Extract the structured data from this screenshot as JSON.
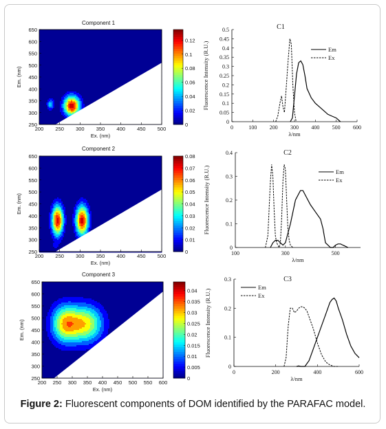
{
  "caption": {
    "label": "Figure 2:",
    "text": " Fluorescent components of DOM identified by the PARAFAC model."
  },
  "chart_data": [
    {
      "type": "heatmap",
      "title": "Component 1",
      "xlabel": "Ex. (nm)",
      "ylabel": "Em. (nm)",
      "xlim": [
        200,
        500
      ],
      "ylim": [
        250,
        650
      ],
      "xticks": [
        "200",
        "250",
        "300",
        "350",
        "400",
        "450",
        "500"
      ],
      "yticks": [
        "250",
        "300",
        "350",
        "400",
        "450",
        "500",
        "550",
        "600",
        "650"
      ],
      "colorbar_ticks": [
        "0",
        "0.02",
        "0.04",
        "0.06",
        "0.08",
        "0.1",
        "0.12"
      ],
      "colorbar_max": 0.135,
      "peaks": [
        {
          "ex": 228,
          "em": 335,
          "value": 0.05,
          "sx": 6,
          "sy": 16
        },
        {
          "ex": 280,
          "em": 328,
          "value": 0.13,
          "sx": 14,
          "sy": 30
        }
      ]
    },
    {
      "type": "line",
      "title": "C1",
      "xlabel": "λ/nm",
      "ylabel": "Fluorescence Intensity (R.U.)",
      "xlim": [
        0,
        600
      ],
      "ylim": [
        0,
        0.5
      ],
      "xticks": [
        "0",
        "100",
        "200",
        "300",
        "400",
        "500",
        "600"
      ],
      "yticks": [
        "0",
        "0.05",
        "0.1",
        "0.15",
        "0.2",
        "0.25",
        "0.3",
        "0.35",
        "0.4",
        "0.45",
        "0.5"
      ],
      "legend": [
        "Em",
        "Ex"
      ],
      "series": [
        {
          "name": "Em",
          "style": "solid",
          "x": [
            280,
            290,
            300,
            310,
            320,
            330,
            340,
            350,
            360,
            380,
            400,
            420,
            440,
            460,
            480,
            500,
            520
          ],
          "y": [
            0,
            0.02,
            0.14,
            0.26,
            0.32,
            0.33,
            0.31,
            0.25,
            0.18,
            0.13,
            0.1,
            0.08,
            0.06,
            0.04,
            0.03,
            0.02,
            0.0
          ]
        },
        {
          "name": "Ex",
          "style": "dashed",
          "x": [
            210,
            220,
            230,
            238,
            245,
            252,
            260,
            270,
            278,
            285,
            292,
            300,
            308
          ],
          "y": [
            0,
            0.03,
            0.1,
            0.14,
            0.08,
            0.05,
            0.18,
            0.34,
            0.45,
            0.42,
            0.2,
            0.05,
            0
          ]
        }
      ]
    },
    {
      "type": "heatmap",
      "title": "Component 2",
      "xlabel": "Ex. (nm)",
      "ylabel": "Em. (nm)",
      "xlim": [
        200,
        500
      ],
      "ylim": [
        250,
        650
      ],
      "xticks": [
        "200",
        "250",
        "300",
        "350",
        "400",
        "450",
        "500"
      ],
      "yticks": [
        "250",
        "300",
        "350",
        "400",
        "450",
        "500",
        "550",
        "600",
        "650"
      ],
      "colorbar_ticks": [
        "0",
        "0.01",
        "0.02",
        "0.03",
        "0.04",
        "0.05",
        "0.06",
        "0.07",
        "0.08"
      ],
      "colorbar_max": 0.08,
      "peaks": [
        {
          "ex": 245,
          "em": 380,
          "value": 0.075,
          "sx": 10,
          "sy": 45
        },
        {
          "ex": 305,
          "em": 380,
          "value": 0.075,
          "sx": 11,
          "sy": 45
        },
        {
          "ex": 240,
          "em": 275,
          "value": 0.012,
          "sx": 5,
          "sy": 8
        }
      ]
    },
    {
      "type": "line",
      "title": "C2",
      "xlabel": "λ/nm",
      "ylabel": "Fluorescence Intensity (R.U.)",
      "xlim": [
        100,
        600
      ],
      "ylim": [
        0,
        0.4
      ],
      "xticks": [
        "100",
        "300",
        "500"
      ],
      "yticks": [
        "0",
        "0.1",
        "0.2",
        "0.3",
        "0.4"
      ],
      "legend": [
        "Em",
        "Ex"
      ],
      "series": [
        {
          "name": "Em",
          "style": "solid",
          "x": [
            240,
            250,
            260,
            270,
            280,
            290,
            300,
            320,
            340,
            360,
            370,
            380,
            400,
            420,
            440,
            450,
            460,
            470,
            480,
            490,
            500,
            510,
            520,
            530,
            540,
            550
          ],
          "y": [
            0,
            0.02,
            0.03,
            0.03,
            0.02,
            0.01,
            0.02,
            0.1,
            0.2,
            0.24,
            0.24,
            0.22,
            0.18,
            0.15,
            0.12,
            0.08,
            0.02,
            0.01,
            0.0,
            0.0,
            0.01,
            0.015,
            0.015,
            0.01,
            0.005,
            0
          ]
        },
        {
          "name": "Ex",
          "style": "dashed",
          "x": [
            220,
            230,
            240,
            245,
            250,
            255,
            260,
            265,
            270,
            275,
            280,
            285,
            290,
            295,
            300,
            305,
            310,
            315,
            320,
            330
          ],
          "y": [
            0,
            0.05,
            0.28,
            0.35,
            0.3,
            0.16,
            0.05,
            0.02,
            0.01,
            0.0,
            0.02,
            0.12,
            0.28,
            0.35,
            0.33,
            0.2,
            0.08,
            0.03,
            0.01,
            0
          ]
        }
      ]
    },
    {
      "type": "heatmap",
      "title": "Component 3",
      "xlabel": "Ex. (nm)",
      "ylabel": "Em. (nm)",
      "xlim": [
        200,
        600
      ],
      "ylim": [
        250,
        650
      ],
      "xticks": [
        "200",
        "250",
        "300",
        "350",
        "400",
        "450",
        "500",
        "550",
        "600"
      ],
      "yticks": [
        "250",
        "300",
        "350",
        "400",
        "450",
        "500",
        "550",
        "600",
        "650"
      ],
      "colorbar_ticks": [
        "0",
        "0.005",
        "0.01",
        "0.015",
        "0.02",
        "0.025",
        "0.03",
        "0.035",
        "0.04"
      ],
      "colorbar_max": 0.044,
      "peaks": [
        {
          "ex": 275,
          "em": 475,
          "value": 0.028,
          "sx": 32,
          "sy": 55
        },
        {
          "ex": 345,
          "em": 475,
          "value": 0.028,
          "sx": 40,
          "sy": 55
        }
      ]
    },
    {
      "type": "line",
      "title": "C3",
      "xlabel": "λ/nm",
      "ylabel": "Fluorescence Intensity (R.U.)",
      "xlim": [
        0,
        600
      ],
      "ylim": [
        0,
        0.3
      ],
      "xticks": [
        "0",
        "200",
        "400",
        "600"
      ],
      "yticks": [
        "0",
        "0.1",
        "0.2",
        "0.3"
      ],
      "legend": [
        "Em",
        "Ex"
      ],
      "series": [
        {
          "name": "Em",
          "style": "solid",
          "x": [
            300,
            310,
            320,
            340,
            360,
            380,
            400,
            420,
            440,
            460,
            470,
            480,
            490,
            500,
            520,
            540,
            560,
            580,
            600
          ],
          "y": [
            0,
            0.002,
            0.0,
            0.0,
            0.02,
            0.06,
            0.1,
            0.14,
            0.18,
            0.22,
            0.23,
            0.235,
            0.225,
            0.2,
            0.16,
            0.11,
            0.07,
            0.045,
            0.03
          ]
        },
        {
          "name": "Ex",
          "style": "dashed",
          "x": [
            240,
            250,
            260,
            270,
            280,
            290,
            300,
            310,
            320,
            330,
            340,
            350,
            360,
            380,
            400,
            420,
            440,
            460,
            480,
            500
          ],
          "y": [
            0,
            0.03,
            0.14,
            0.2,
            0.2,
            0.185,
            0.19,
            0.2,
            0.205,
            0.205,
            0.2,
            0.19,
            0.17,
            0.13,
            0.08,
            0.04,
            0.015,
            0.005,
            0.0,
            0
          ]
        }
      ]
    }
  ]
}
